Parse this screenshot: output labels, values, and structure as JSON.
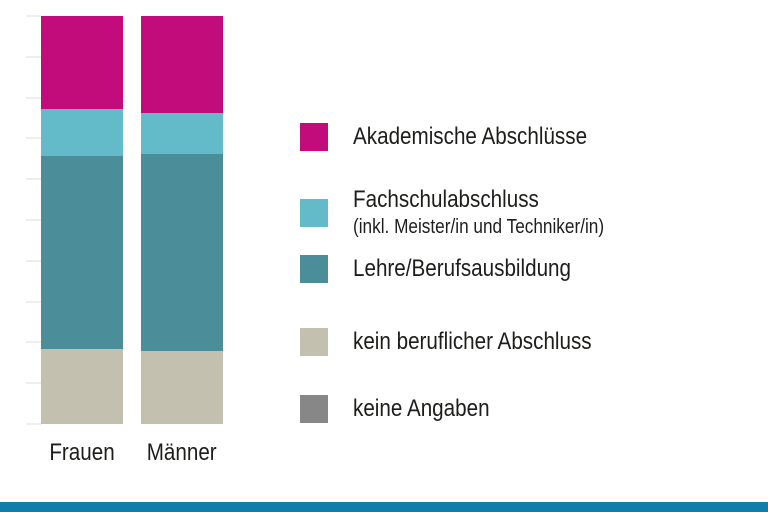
{
  "chart_data": {
    "type": "bar",
    "stacked": true,
    "unit": "percent",
    "categories": [
      "Frauen",
      "Männer"
    ],
    "series": [
      {
        "name": "Akademische Abschlüsse",
        "color": "#c30c7c",
        "values": [
          22.8,
          23.8
        ]
      },
      {
        "name": "Fachschulabschluss (inkl. Meister/in und Techniker/in)",
        "color": "#63bac9",
        "values": [
          11.5,
          10.0
        ]
      },
      {
        "name": "Lehre/Berufsausbildung",
        "color": "#4b8d99",
        "values": [
          47.3,
          48.3
        ]
      },
      {
        "name": "kein beruflicher Abschluss",
        "color": "#c3c0b0",
        "values": [
          18.4,
          17.9
        ]
      },
      {
        "name": "keine Angaben",
        "color": "#878787",
        "values": [
          0,
          0
        ]
      }
    ],
    "title": "",
    "xlabel": "",
    "ylabel": "",
    "ylim": [
      0,
      100
    ],
    "y_tick_interval": 10,
    "grid": "faint left tick marks every 10%, no axis labels",
    "legend_position": "right"
  },
  "legend": {
    "items": [
      {
        "label": "Akademische Abschlüsse",
        "sublabel": ""
      },
      {
        "label": "Fachschulabschluss",
        "sublabel": "(inkl. Meister/in und Techniker/in)"
      },
      {
        "label": "Lehre/Berufsausbildung",
        "sublabel": ""
      },
      {
        "label": "kein beruflicher Abschluss",
        "sublabel": ""
      },
      {
        "label": "keine Angaben",
        "sublabel": ""
      }
    ]
  },
  "theme": {
    "footer_bar_color": "#107dab",
    "tick_color": "#f0eded",
    "text_color": "#1d1d1b",
    "background": "#ffffff"
  }
}
